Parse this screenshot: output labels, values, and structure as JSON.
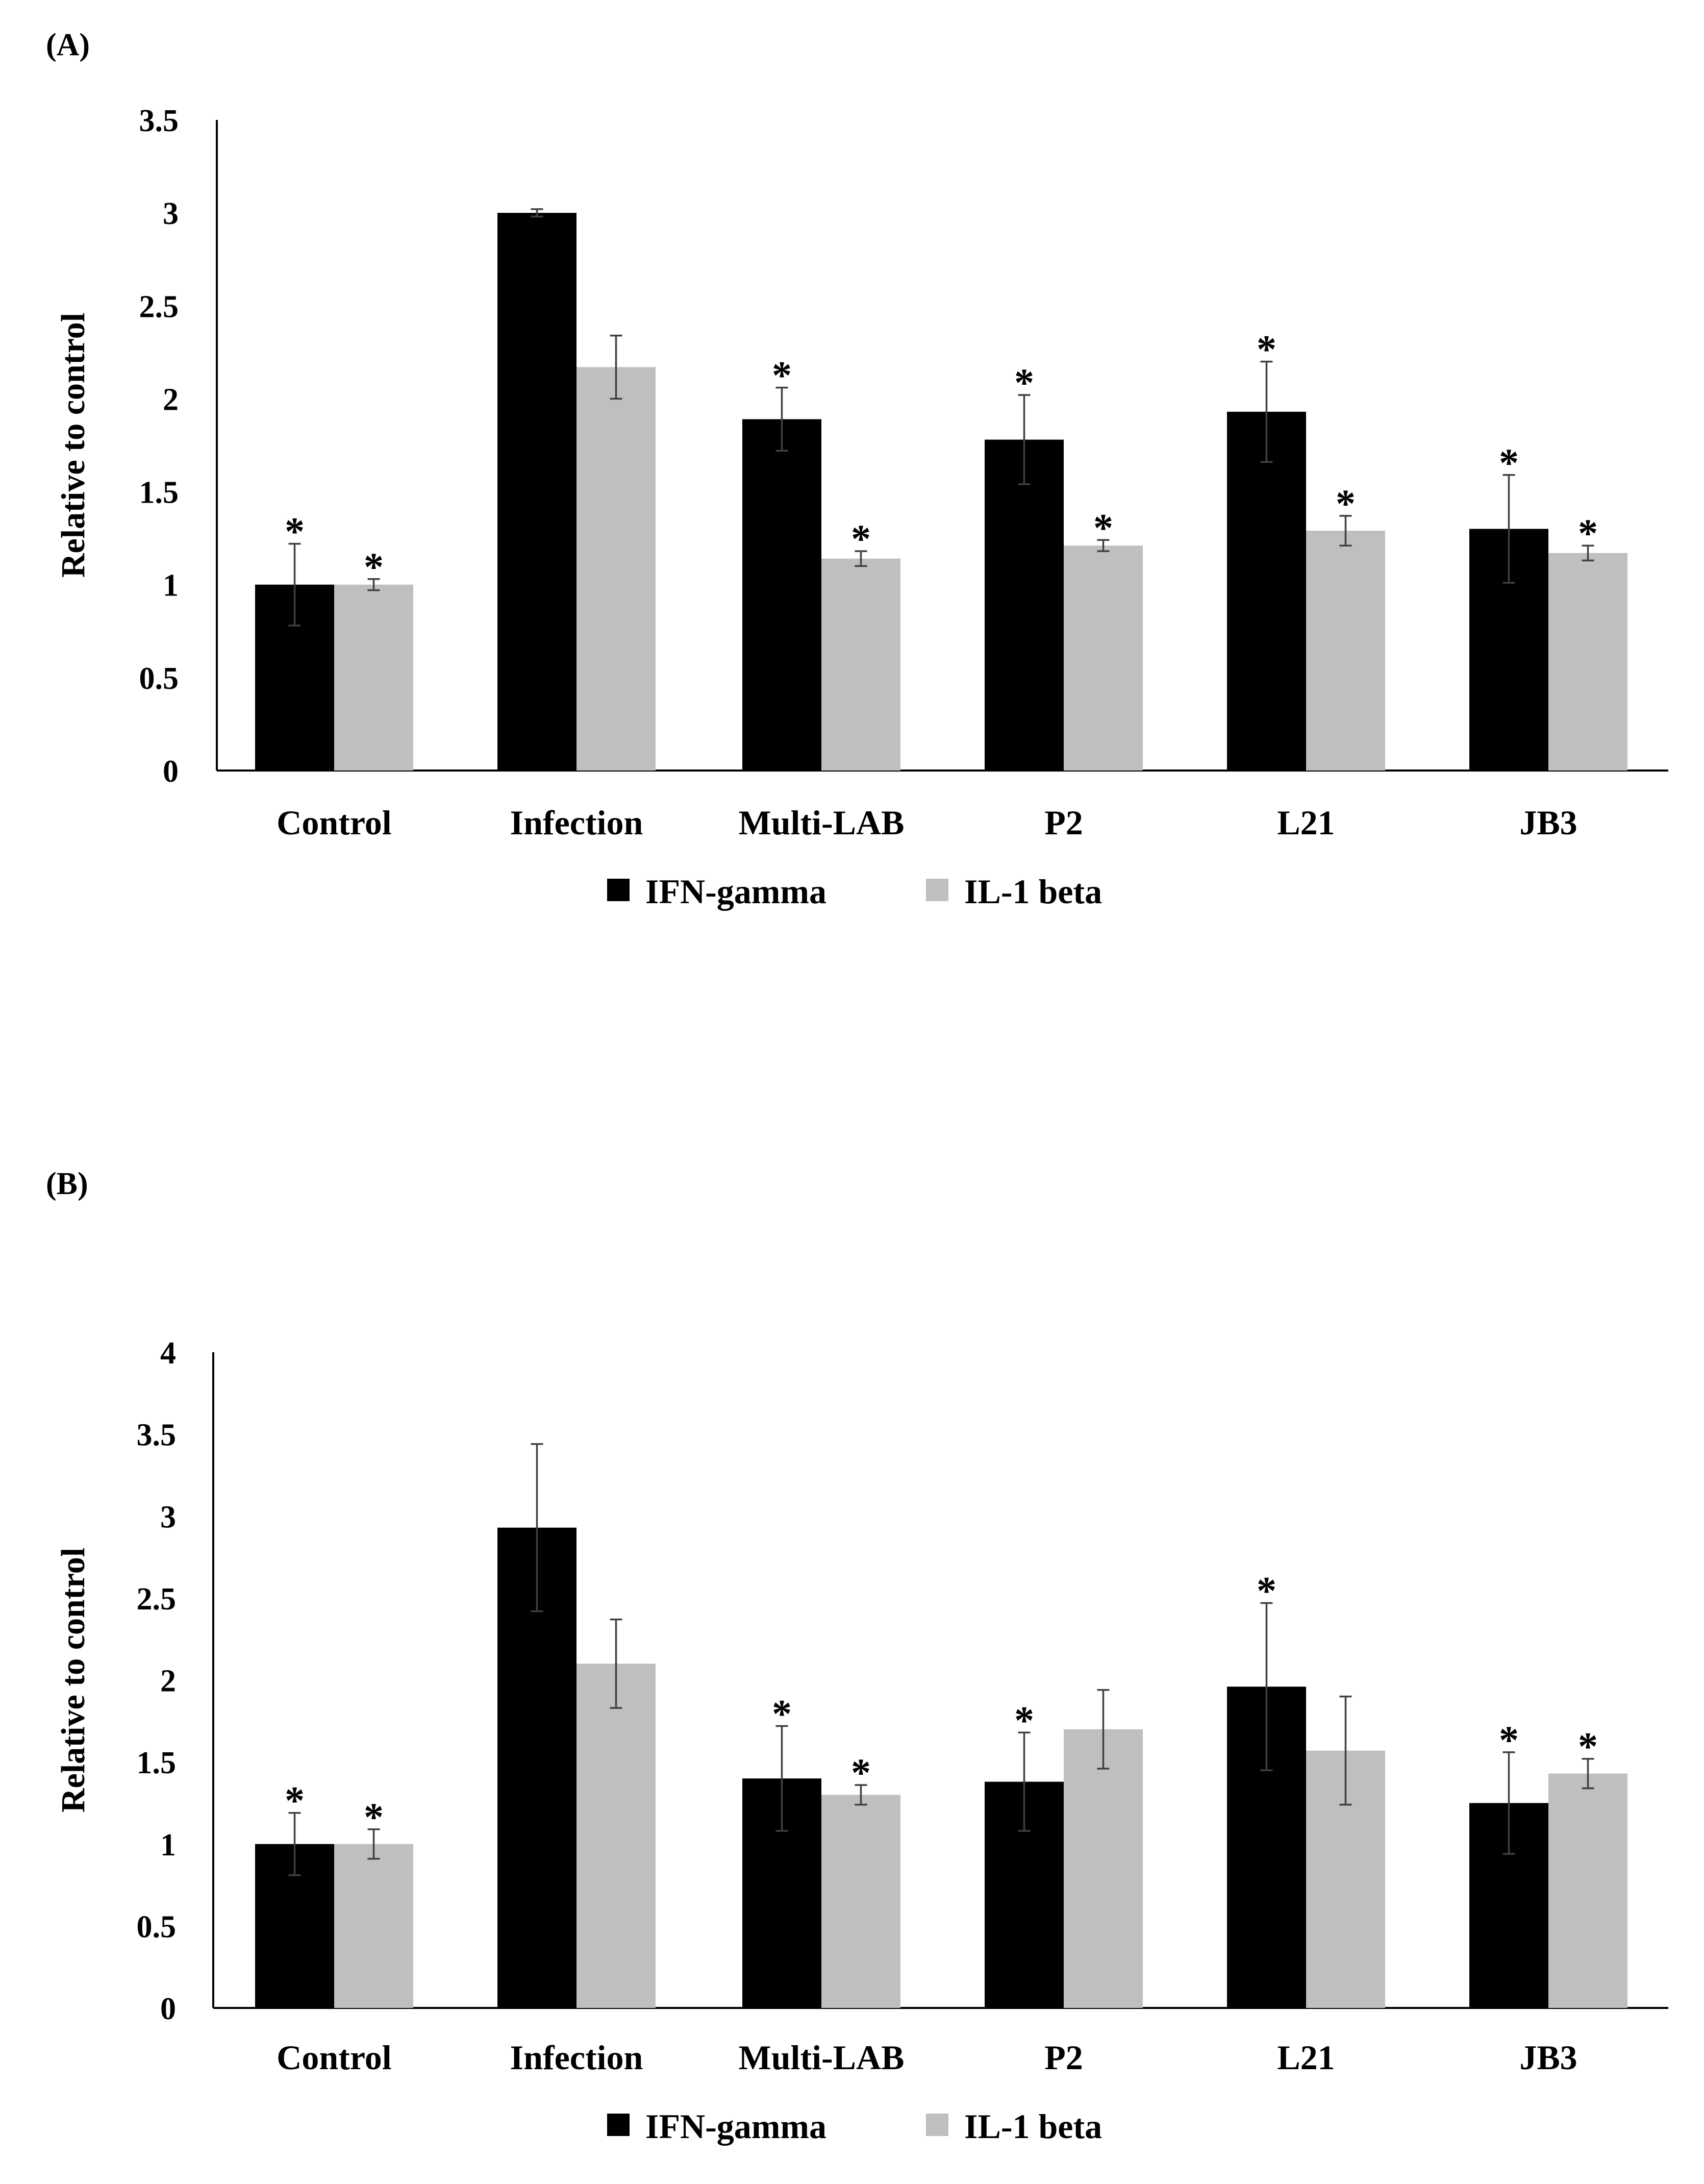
{
  "chart_data": [
    {
      "panel": "(A)",
      "type": "bar",
      "ylabel": "Relative to control",
      "ylim": [
        0,
        3.5
      ],
      "yticks": [
        "0",
        "0.5",
        "1",
        "1.5",
        "2",
        "2.5",
        "3",
        "3.5"
      ],
      "categories": [
        "Control",
        "Infection",
        "Multi-LAB",
        "P2",
        "L21",
        "JB3"
      ],
      "series": [
        {
          "name": "IFN-gamma",
          "color": "#000000",
          "values": [
            1.0,
            3.0,
            1.89,
            1.78,
            1.93,
            1.3
          ],
          "errors": [
            0.22,
            0.02,
            0.17,
            0.24,
            0.27,
            0.29
          ],
          "significance": [
            "*",
            "",
            "*",
            "*",
            "*",
            "*"
          ]
        },
        {
          "name": "IL-1 beta",
          "color": "#bfbfbf",
          "values": [
            1.0,
            2.17,
            1.14,
            1.21,
            1.29,
            1.17
          ],
          "errors": [
            0.03,
            0.17,
            0.04,
            0.03,
            0.08,
            0.04
          ],
          "significance": [
            "*",
            "",
            "*",
            "*",
            "*",
            "*"
          ]
        }
      ],
      "legend": [
        "IFN-gamma",
        "IL-1 beta"
      ]
    },
    {
      "panel": "(B)",
      "type": "bar",
      "ylabel": "Relative to control",
      "ylim": [
        0,
        4
      ],
      "yticks": [
        "0",
        "0.5",
        "1",
        "1.5",
        "2",
        "2.5",
        "3",
        "3.5",
        "4"
      ],
      "categories": [
        "Control",
        "Infection",
        "Multi-LAB",
        "P2",
        "L21",
        "JB3"
      ],
      "series": [
        {
          "name": "IFN-gamma",
          "color": "#000000",
          "values": [
            1.0,
            2.93,
            1.4,
            1.38,
            1.96,
            1.25
          ],
          "errors": [
            0.19,
            0.51,
            0.32,
            0.3,
            0.51,
            0.31
          ],
          "significance": [
            "*",
            "",
            "*",
            "*",
            "*",
            "*"
          ]
        },
        {
          "name": "IL-1 beta",
          "color": "#bfbfbf",
          "values": [
            1.0,
            2.1,
            1.3,
            1.7,
            1.57,
            1.43
          ],
          "errors": [
            0.09,
            0.27,
            0.06,
            0.24,
            0.33,
            0.09
          ],
          "significance": [
            "*",
            "",
            "*",
            "",
            "",
            "*"
          ]
        }
      ],
      "legend": [
        "IFN-gamma",
        "IL-1 beta"
      ]
    }
  ]
}
